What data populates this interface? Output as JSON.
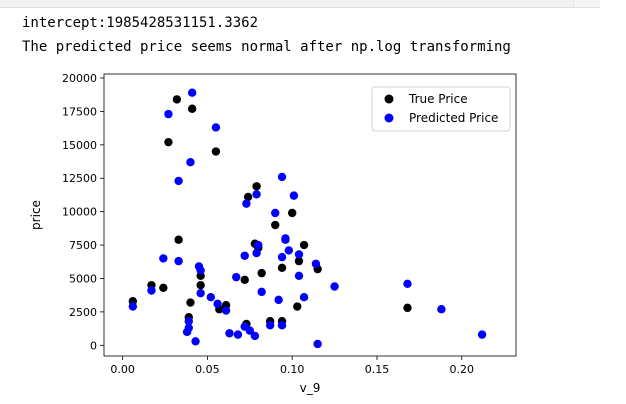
{
  "output": {
    "lines": [
      "intercept:1985428531151.3362",
      "The predicted price seems normal after np.log transforming"
    ]
  },
  "chart_data": {
    "type": "scatter",
    "xlabel": "v_9",
    "ylabel": "price",
    "xlim": [
      -0.011,
      0.232
    ],
    "ylim": [
      -800,
      20300
    ],
    "x_ticks": [
      0.0,
      0.05,
      0.1,
      0.15,
      0.2
    ],
    "x_tick_labels": [
      "0.00",
      "0.05",
      "0.10",
      "0.15",
      "0.20"
    ],
    "y_ticks": [
      0,
      2500,
      5000,
      7500,
      10000,
      12500,
      15000,
      17500,
      20000
    ],
    "y_tick_labels": [
      "0",
      "2500",
      "5000",
      "7500",
      "10000",
      "12500",
      "15000",
      "17500",
      "20000"
    ],
    "legend_position": "upper-right",
    "series": [
      {
        "name": "True Price",
        "color": "#000000",
        "points": [
          [
            0.006,
            3300
          ],
          [
            0.017,
            4500
          ],
          [
            0.024,
            4300
          ],
          [
            0.027,
            15200
          ],
          [
            0.032,
            18400
          ],
          [
            0.033,
            7900
          ],
          [
            0.039,
            2100
          ],
          [
            0.04,
            3200
          ],
          [
            0.041,
            17700
          ],
          [
            0.046,
            5200
          ],
          [
            0.046,
            4500
          ],
          [
            0.055,
            14500
          ],
          [
            0.057,
            2700
          ],
          [
            0.061,
            3000
          ],
          [
            0.072,
            4900
          ],
          [
            0.073,
            1600
          ],
          [
            0.074,
            11100
          ],
          [
            0.078,
            7600
          ],
          [
            0.079,
            11900
          ],
          [
            0.08,
            7300
          ],
          [
            0.082,
            5400
          ],
          [
            0.087,
            1800
          ],
          [
            0.09,
            9000
          ],
          [
            0.094,
            5800
          ],
          [
            0.094,
            1800
          ],
          [
            0.1,
            9900
          ],
          [
            0.103,
            2900
          ],
          [
            0.104,
            6300
          ],
          [
            0.107,
            7500
          ],
          [
            0.115,
            5700
          ],
          [
            0.168,
            2800
          ]
        ]
      },
      {
        "name": "Predicted Price",
        "color": "#0000ff",
        "points": [
          [
            0.006,
            2900
          ],
          [
            0.017,
            4100
          ],
          [
            0.024,
            6500
          ],
          [
            0.027,
            17300
          ],
          [
            0.033,
            12300
          ],
          [
            0.033,
            6300
          ],
          [
            0.038,
            1000
          ],
          [
            0.039,
            1300
          ],
          [
            0.039,
            1800
          ],
          [
            0.04,
            13700
          ],
          [
            0.041,
            18900
          ],
          [
            0.043,
            300
          ],
          [
            0.045,
            5900
          ],
          [
            0.046,
            3900
          ],
          [
            0.046,
            5600
          ],
          [
            0.052,
            3600
          ],
          [
            0.055,
            16300
          ],
          [
            0.056,
            3100
          ],
          [
            0.061,
            2600
          ],
          [
            0.063,
            900
          ],
          [
            0.067,
            5100
          ],
          [
            0.068,
            800
          ],
          [
            0.072,
            6700
          ],
          [
            0.072,
            1400
          ],
          [
            0.073,
            10600
          ],
          [
            0.075,
            1100
          ],
          [
            0.078,
            700
          ],
          [
            0.079,
            11300
          ],
          [
            0.079,
            6900
          ],
          [
            0.08,
            7500
          ],
          [
            0.082,
            4000
          ],
          [
            0.087,
            1500
          ],
          [
            0.09,
            9900
          ],
          [
            0.092,
            3400
          ],
          [
            0.094,
            12600
          ],
          [
            0.094,
            6600
          ],
          [
            0.094,
            1500
          ],
          [
            0.096,
            7900
          ],
          [
            0.096,
            8000
          ],
          [
            0.098,
            7100
          ],
          [
            0.101,
            11200
          ],
          [
            0.104,
            5200
          ],
          [
            0.104,
            6800
          ],
          [
            0.107,
            3600
          ],
          [
            0.114,
            6100
          ],
          [
            0.115,
            100
          ],
          [
            0.125,
            4400
          ],
          [
            0.168,
            4600
          ],
          [
            0.188,
            2700
          ],
          [
            0.212,
            800
          ]
        ]
      }
    ]
  }
}
